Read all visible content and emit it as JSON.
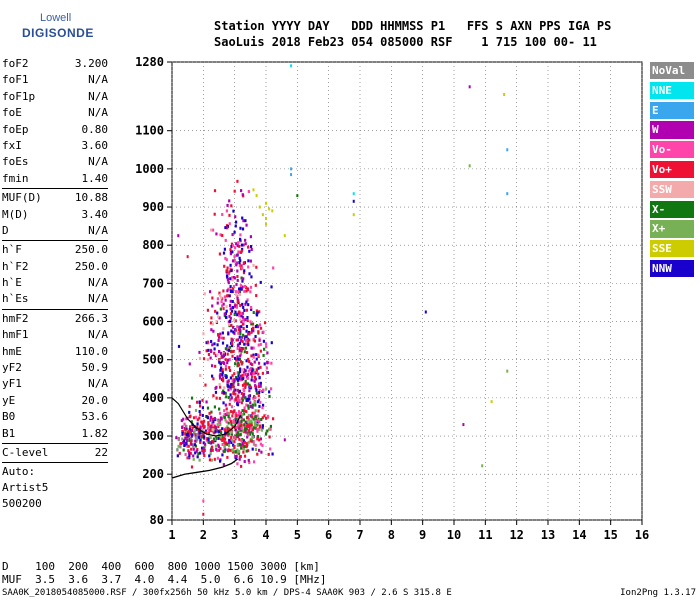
{
  "logo": {
    "line1": "Lowell",
    "line2": "DIGISONDE"
  },
  "header": {
    "row1": "Station YYYY DAY   DDD HHMMSS P1   FFS S AXN PPS IGA PS",
    "row2": "SaoLuis 2018 Feb23 054 085000 RSF    1 715 100 00- 11"
  },
  "params": [
    {
      "label": "foF2",
      "value": "3.200"
    },
    {
      "label": "foF1",
      "value": "N/A"
    },
    {
      "label": "foF1p",
      "value": "N/A"
    },
    {
      "label": "foE",
      "value": "N/A"
    },
    {
      "label": "foEp",
      "value": "0.80"
    },
    {
      "label": "fxI",
      "value": "3.60"
    },
    {
      "label": "foEs",
      "value": "N/A"
    },
    {
      "label": "fmin",
      "value": "1.40"
    },
    {
      "sep": true
    },
    {
      "label": "MUF(D)",
      "value": "10.88"
    },
    {
      "label": "M(D)",
      "value": "3.40"
    },
    {
      "label": "D",
      "value": "N/A"
    },
    {
      "sep": true
    },
    {
      "label": "h`F",
      "value": "250.0"
    },
    {
      "label": "h`F2",
      "value": "250.0"
    },
    {
      "label": "h`E",
      "value": "N/A"
    },
    {
      "label": "h`Es",
      "value": "N/A"
    },
    {
      "sep": true
    },
    {
      "label": "hmF2",
      "value": "266.3"
    },
    {
      "label": "hmF1",
      "value": "N/A"
    },
    {
      "label": "hmE",
      "value": "110.0"
    },
    {
      "label": "yF2",
      "value": "50.9"
    },
    {
      "label": "yF1",
      "value": "N/A"
    },
    {
      "label": "yE",
      "value": "20.0"
    },
    {
      "label": "B0",
      "value": "53.6"
    },
    {
      "label": "B1",
      "value": "1.82"
    },
    {
      "sep": true
    },
    {
      "label": "C-level",
      "value": "22"
    },
    {
      "sep": true
    }
  ],
  "auto": {
    "l1": "Auto:",
    "l2": "Artist5",
    "l3": "500200"
  },
  "legend": [
    {
      "label": "NoVal",
      "color": "#8c8c8c"
    },
    {
      "label": "NNE",
      "color": "#00e5ee"
    },
    {
      "label": "E",
      "color": "#3aa6ee"
    },
    {
      "label": "W",
      "color": "#b000b0"
    },
    {
      "label": "Vo-",
      "color": "#ff44aa"
    },
    {
      "label": "Vo+",
      "color": "#ee1133"
    },
    {
      "label": "SSW",
      "color": "#f4aaaa"
    },
    {
      "label": "X-",
      "color": "#117711"
    },
    {
      "label": "X+",
      "color": "#77b055"
    },
    {
      "label": "SSE",
      "color": "#cccc00"
    },
    {
      "label": "NNW",
      "color": "#1a00cc"
    }
  ],
  "muf_table": {
    "row1": "D    100  200  400  600  800 1000 1500 3000 [km]",
    "row2": "MUF  3.5  3.6  3.7  4.0  4.4  5.0  6.6 10.9 [MHz]"
  },
  "footer": {
    "left": "SAA0K_2018054085000.RSF / 300fx256h 50 kHz 5.0 km / DPS-4 SAA0K 903 / 2.6 S 315.8 E",
    "right": "Ion2Png 1.3.17"
  },
  "chart_data": {
    "type": "scatter",
    "xlabel": "",
    "ylabel": "",
    "xlim": [
      1,
      16
    ],
    "ylim": [
      80,
      1280
    ],
    "x_ticks": [
      1,
      2,
      3,
      4,
      5,
      6,
      7,
      8,
      9,
      10,
      11,
      12,
      13,
      14,
      15,
      16
    ],
    "y_ticks": [
      80,
      200,
      300,
      400,
      500,
      600,
      700,
      800,
      900,
      1000,
      1100,
      1280
    ],
    "grid": true,
    "points": [
      {
        "x": 4.8,
        "y": 1270,
        "c": "#00e5ee"
      },
      {
        "x": 10.5,
        "y": 1215,
        "c": "#b000b0"
      },
      {
        "x": 11.6,
        "y": 1195,
        "c": "#cccc00"
      },
      {
        "x": 11.7,
        "y": 1050,
        "c": "#3aa6ee"
      },
      {
        "x": 10.5,
        "y": 1008,
        "c": "#77b055"
      },
      {
        "x": 4.8,
        "y": 1000,
        "c": "#3aa6ee"
      },
      {
        "x": 4.8,
        "y": 985,
        "c": "#3aa6ee"
      },
      {
        "x": 5.0,
        "y": 930,
        "c": "#117711"
      },
      {
        "x": 6.8,
        "y": 935,
        "c": "#00e5ee"
      },
      {
        "x": 6.8,
        "y": 915,
        "c": "#1a00cc"
      },
      {
        "x": 6.8,
        "y": 880,
        "c": "#cccc00"
      },
      {
        "x": 11.7,
        "y": 935,
        "c": "#3aa6ee"
      },
      {
        "x": 9.1,
        "y": 625,
        "c": "#1a00cc"
      },
      {
        "x": 11.7,
        "y": 470,
        "c": "#77b055"
      },
      {
        "x": 11.2,
        "y": 390,
        "c": "#cccc00"
      },
      {
        "x": 10.3,
        "y": 330,
        "c": "#b000b0"
      },
      {
        "x": 10.9,
        "y": 222,
        "c": "#77b055"
      },
      {
        "x": 4.6,
        "y": 825,
        "c": "#cccc00"
      },
      {
        "x": 1.2,
        "y": 825,
        "c": "#b000b0"
      },
      {
        "x": 1.5,
        "y": 770,
        "c": "#ee1133"
      },
      {
        "x": 3.6,
        "y": 945,
        "c": "#cccc00"
      },
      {
        "x": 3.7,
        "y": 930,
        "c": "#cccc00"
      },
      {
        "x": 3.8,
        "y": 900,
        "c": "#cccc00"
      },
      {
        "x": 3.9,
        "y": 880,
        "c": "#cccc00"
      },
      {
        "x": 4.0,
        "y": 910,
        "c": "#cccc00"
      },
      {
        "x": 4.0,
        "y": 870,
        "c": "#cccc00"
      },
      {
        "x": 4.1,
        "y": 895,
        "c": "#cccc00"
      },
      {
        "x": 4.2,
        "y": 890,
        "c": "#cccc00"
      },
      {
        "x": 4.0,
        "y": 855,
        "c": "#cccc00"
      },
      {
        "x": 2.0,
        "y": 130,
        "c": "#ff44aa"
      },
      {
        "x": 2.0,
        "y": 95,
        "c": "#ee1133"
      },
      {
        "x": 4.6,
        "y": 290,
        "c": "#b000b0"
      }
    ],
    "clusters": [
      {
        "cx": 2.4,
        "cy": 310,
        "sx": 0.65,
        "sy": 45,
        "n": 360,
        "colors": [
          "#ee1133",
          "#ee1133",
          "#ee1133",
          "#1a00cc",
          "#b000b0",
          "#77b055",
          "#117711",
          "#ff44aa"
        ]
      },
      {
        "cx": 3.05,
        "cy": 480,
        "sx": 0.35,
        "sy": 150,
        "n": 280,
        "colors": [
          "#ee1133",
          "#b000b0",
          "#1a00cc",
          "#ff44aa",
          "#117711"
        ]
      },
      {
        "cx": 3.0,
        "cy": 740,
        "sx": 0.25,
        "sy": 120,
        "n": 180,
        "colors": [
          "#b000b0",
          "#ee1133",
          "#ff44aa",
          "#1a00cc"
        ]
      },
      {
        "cx": 2.6,
        "cy": 540,
        "sx": 0.4,
        "sy": 110,
        "n": 160,
        "colors": [
          "#ee1133",
          "#1a00cc",
          "#b000b0",
          "#f4aaaa"
        ]
      },
      {
        "cx": 3.6,
        "cy": 470,
        "sx": 0.25,
        "sy": 130,
        "n": 150,
        "colors": [
          "#ee1133",
          "#b000b0",
          "#ff44aa",
          "#1a00cc"
        ]
      },
      {
        "cx": 3.4,
        "cy": 330,
        "sx": 0.35,
        "sy": 40,
        "n": 150,
        "colors": [
          "#77b055",
          "#117711",
          "#ee1133",
          "#ff44aa"
        ]
      },
      {
        "cx": 1.6,
        "cy": 300,
        "sx": 0.3,
        "sy": 35,
        "n": 90,
        "colors": [
          "#1a00cc",
          "#ee1133",
          "#b000b0",
          "#8c8c8c"
        ]
      }
    ],
    "trace_curve": [
      [
        1.0,
        190
      ],
      [
        1.4,
        200
      ],
      [
        1.8,
        205
      ],
      [
        2.2,
        210
      ],
      [
        2.6,
        218
      ],
      [
        2.9,
        228
      ],
      [
        3.1,
        240
      ]
    ],
    "trace_upper": [
      [
        1.0,
        400
      ],
      [
        1.2,
        385
      ],
      [
        1.5,
        345
      ],
      [
        1.8,
        320
      ],
      [
        2.1,
        305
      ],
      [
        2.4,
        300
      ],
      [
        2.7,
        305
      ],
      [
        3.0,
        325
      ],
      [
        3.2,
        355
      ]
    ]
  }
}
